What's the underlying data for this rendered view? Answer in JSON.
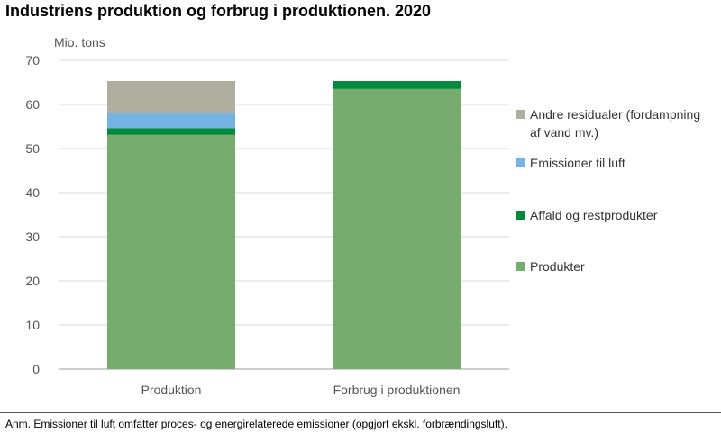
{
  "title": "Industriens produktion og forbrug i produktionen. 2020",
  "note": "Anm. Emissioner til luft omfatter proces- og energirelaterede emissioner (opgjort ekskl. forbrændingsluft).",
  "chart_data": {
    "type": "bar",
    "stacked": true,
    "title": "Industriens produktion og forbrug i produktionen. 2020",
    "ylabel": "Mio. tons",
    "xlabel": "",
    "ylim": [
      0,
      70
    ],
    "yticks": [
      0,
      10,
      20,
      30,
      40,
      50,
      60,
      70
    ],
    "grid": true,
    "legend_position": "right",
    "categories": [
      "Produktion",
      "Forbrug i produktionen"
    ],
    "series": [
      {
        "name": "Produkter",
        "color": "#76AD6E",
        "values": [
          53.1,
          63.5
        ]
      },
      {
        "name": "Affald og restprodukter",
        "color": "#008A3C",
        "values": [
          1.5,
          1.8
        ]
      },
      {
        "name": "Emissioner til luft",
        "color": "#74B4E4",
        "values": [
          3.5,
          0
        ]
      },
      {
        "name": "Andre residualer (fordampning af vand mv.)",
        "color": "#B0AE9E",
        "values": [
          7.2,
          0
        ]
      }
    ],
    "legend_order": [
      "Andre residualer (fordampning af vand mv.)",
      "Emissioner til luft",
      "Affald og restprodukter",
      "Produkter"
    ]
  }
}
